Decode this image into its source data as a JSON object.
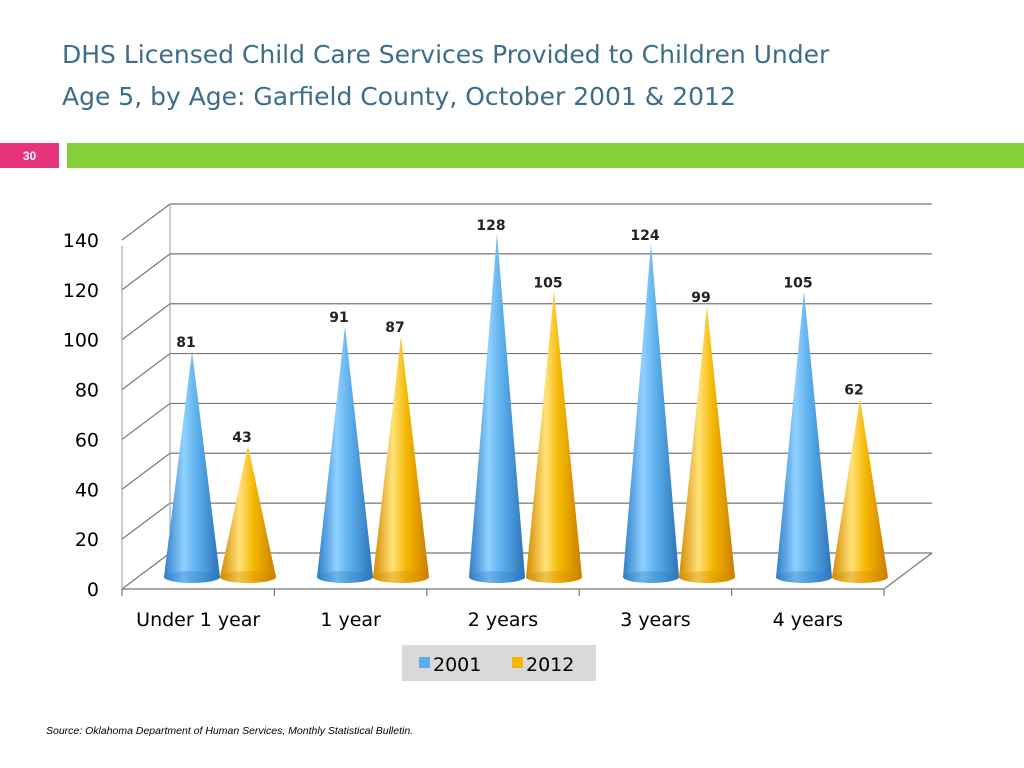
{
  "slide": {
    "title_line1": "DHS Licensed Child Care Services Provided to Children Under",
    "title_line2": "Age 5, by Age: Garfield County, October 2001 & 2012",
    "number": "30",
    "source": "Source:  Oklahoma Department of Human Services, Monthly Statistical Bulletin."
  },
  "colors": {
    "series_2001": "#5aaeea",
    "series_2012": "#f5b800",
    "title": "#3c6e89",
    "slide_number_bg": "#e8327c",
    "accent_bar": "#84d13a"
  },
  "chart_data": {
    "type": "bar",
    "style": "3d-cone",
    "categories": [
      "Under 1 year",
      "1 year",
      "2 years",
      "3 years",
      "4 years"
    ],
    "series": [
      {
        "name": "2001",
        "values": [
          81,
          91,
          128,
          124,
          105
        ]
      },
      {
        "name": "2012",
        "values": [
          43,
          87,
          105,
          99,
          62
        ]
      }
    ],
    "data_labels": true,
    "ylim": [
      0,
      140
    ],
    "yticks": [
      0,
      20,
      40,
      60,
      80,
      100,
      120,
      140
    ],
    "grid": true,
    "legend_position": "bottom"
  }
}
